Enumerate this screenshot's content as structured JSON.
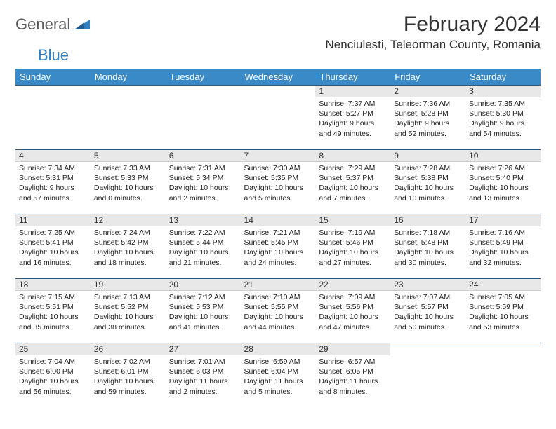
{
  "logo": {
    "general": "General",
    "blue": "Blue"
  },
  "title": "February 2024",
  "location": "Nenciulesti, Teleorman County, Romania",
  "colors": {
    "header_bg": "#3a8ac8",
    "header_text": "#ffffff",
    "daynum_bg": "#e8e8e8",
    "row_border": "#2e5a80",
    "text": "#222222"
  },
  "weekdays": [
    "Sunday",
    "Monday",
    "Tuesday",
    "Wednesday",
    "Thursday",
    "Friday",
    "Saturday"
  ],
  "weeks": [
    [
      {
        "empty": true
      },
      {
        "empty": true
      },
      {
        "empty": true
      },
      {
        "empty": true
      },
      {
        "day": "1",
        "sunrise": "Sunrise: 7:37 AM",
        "sunset": "Sunset: 5:27 PM",
        "dl1": "Daylight: 9 hours",
        "dl2": "and 49 minutes."
      },
      {
        "day": "2",
        "sunrise": "Sunrise: 7:36 AM",
        "sunset": "Sunset: 5:28 PM",
        "dl1": "Daylight: 9 hours",
        "dl2": "and 52 minutes."
      },
      {
        "day": "3",
        "sunrise": "Sunrise: 7:35 AM",
        "sunset": "Sunset: 5:30 PM",
        "dl1": "Daylight: 9 hours",
        "dl2": "and 54 minutes."
      }
    ],
    [
      {
        "day": "4",
        "sunrise": "Sunrise: 7:34 AM",
        "sunset": "Sunset: 5:31 PM",
        "dl1": "Daylight: 9 hours",
        "dl2": "and 57 minutes."
      },
      {
        "day": "5",
        "sunrise": "Sunrise: 7:33 AM",
        "sunset": "Sunset: 5:33 PM",
        "dl1": "Daylight: 10 hours",
        "dl2": "and 0 minutes."
      },
      {
        "day": "6",
        "sunrise": "Sunrise: 7:31 AM",
        "sunset": "Sunset: 5:34 PM",
        "dl1": "Daylight: 10 hours",
        "dl2": "and 2 minutes."
      },
      {
        "day": "7",
        "sunrise": "Sunrise: 7:30 AM",
        "sunset": "Sunset: 5:35 PM",
        "dl1": "Daylight: 10 hours",
        "dl2": "and 5 minutes."
      },
      {
        "day": "8",
        "sunrise": "Sunrise: 7:29 AM",
        "sunset": "Sunset: 5:37 PM",
        "dl1": "Daylight: 10 hours",
        "dl2": "and 7 minutes."
      },
      {
        "day": "9",
        "sunrise": "Sunrise: 7:28 AM",
        "sunset": "Sunset: 5:38 PM",
        "dl1": "Daylight: 10 hours",
        "dl2": "and 10 minutes."
      },
      {
        "day": "10",
        "sunrise": "Sunrise: 7:26 AM",
        "sunset": "Sunset: 5:40 PM",
        "dl1": "Daylight: 10 hours",
        "dl2": "and 13 minutes."
      }
    ],
    [
      {
        "day": "11",
        "sunrise": "Sunrise: 7:25 AM",
        "sunset": "Sunset: 5:41 PM",
        "dl1": "Daylight: 10 hours",
        "dl2": "and 16 minutes."
      },
      {
        "day": "12",
        "sunrise": "Sunrise: 7:24 AM",
        "sunset": "Sunset: 5:42 PM",
        "dl1": "Daylight: 10 hours",
        "dl2": "and 18 minutes."
      },
      {
        "day": "13",
        "sunrise": "Sunrise: 7:22 AM",
        "sunset": "Sunset: 5:44 PM",
        "dl1": "Daylight: 10 hours",
        "dl2": "and 21 minutes."
      },
      {
        "day": "14",
        "sunrise": "Sunrise: 7:21 AM",
        "sunset": "Sunset: 5:45 PM",
        "dl1": "Daylight: 10 hours",
        "dl2": "and 24 minutes."
      },
      {
        "day": "15",
        "sunrise": "Sunrise: 7:19 AM",
        "sunset": "Sunset: 5:46 PM",
        "dl1": "Daylight: 10 hours",
        "dl2": "and 27 minutes."
      },
      {
        "day": "16",
        "sunrise": "Sunrise: 7:18 AM",
        "sunset": "Sunset: 5:48 PM",
        "dl1": "Daylight: 10 hours",
        "dl2": "and 30 minutes."
      },
      {
        "day": "17",
        "sunrise": "Sunrise: 7:16 AM",
        "sunset": "Sunset: 5:49 PM",
        "dl1": "Daylight: 10 hours",
        "dl2": "and 32 minutes."
      }
    ],
    [
      {
        "day": "18",
        "sunrise": "Sunrise: 7:15 AM",
        "sunset": "Sunset: 5:51 PM",
        "dl1": "Daylight: 10 hours",
        "dl2": "and 35 minutes."
      },
      {
        "day": "19",
        "sunrise": "Sunrise: 7:13 AM",
        "sunset": "Sunset: 5:52 PM",
        "dl1": "Daylight: 10 hours",
        "dl2": "and 38 minutes."
      },
      {
        "day": "20",
        "sunrise": "Sunrise: 7:12 AM",
        "sunset": "Sunset: 5:53 PM",
        "dl1": "Daylight: 10 hours",
        "dl2": "and 41 minutes."
      },
      {
        "day": "21",
        "sunrise": "Sunrise: 7:10 AM",
        "sunset": "Sunset: 5:55 PM",
        "dl1": "Daylight: 10 hours",
        "dl2": "and 44 minutes."
      },
      {
        "day": "22",
        "sunrise": "Sunrise: 7:09 AM",
        "sunset": "Sunset: 5:56 PM",
        "dl1": "Daylight: 10 hours",
        "dl2": "and 47 minutes."
      },
      {
        "day": "23",
        "sunrise": "Sunrise: 7:07 AM",
        "sunset": "Sunset: 5:57 PM",
        "dl1": "Daylight: 10 hours",
        "dl2": "and 50 minutes."
      },
      {
        "day": "24",
        "sunrise": "Sunrise: 7:05 AM",
        "sunset": "Sunset: 5:59 PM",
        "dl1": "Daylight: 10 hours",
        "dl2": "and 53 minutes."
      }
    ],
    [
      {
        "day": "25",
        "sunrise": "Sunrise: 7:04 AM",
        "sunset": "Sunset: 6:00 PM",
        "dl1": "Daylight: 10 hours",
        "dl2": "and 56 minutes."
      },
      {
        "day": "26",
        "sunrise": "Sunrise: 7:02 AM",
        "sunset": "Sunset: 6:01 PM",
        "dl1": "Daylight: 10 hours",
        "dl2": "and 59 minutes."
      },
      {
        "day": "27",
        "sunrise": "Sunrise: 7:01 AM",
        "sunset": "Sunset: 6:03 PM",
        "dl1": "Daylight: 11 hours",
        "dl2": "and 2 minutes."
      },
      {
        "day": "28",
        "sunrise": "Sunrise: 6:59 AM",
        "sunset": "Sunset: 6:04 PM",
        "dl1": "Daylight: 11 hours",
        "dl2": "and 5 minutes."
      },
      {
        "day": "29",
        "sunrise": "Sunrise: 6:57 AM",
        "sunset": "Sunset: 6:05 PM",
        "dl1": "Daylight: 11 hours",
        "dl2": "and 8 minutes."
      },
      {
        "empty": true,
        "trailing": true
      },
      {
        "empty": true,
        "trailing": true
      }
    ]
  ]
}
